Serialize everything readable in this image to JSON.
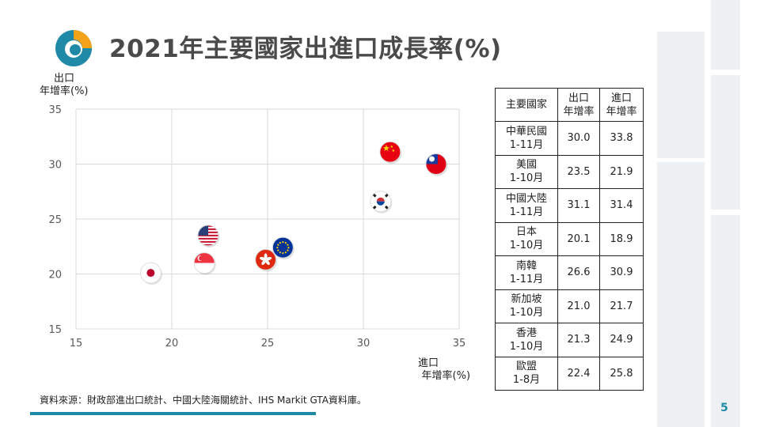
{
  "slide": {
    "title": "2021年主要國家出進口成長率(%)",
    "page_number": "5",
    "source": "資料來源：財政部進出口統計、中國大陸海關統計、IHS Markit GTA資料庫。"
  },
  "chart_data": {
    "type": "scatter",
    "xlabel_line1": "進口",
    "xlabel_line2": "年增率(%)",
    "ylabel_line1": "出口",
    "ylabel_line2": "年增率(%)",
    "xlim": [
      15,
      35
    ],
    "ylim": [
      15,
      35
    ],
    "x_ticks": [
      "15",
      "20",
      "25",
      "30",
      "35"
    ],
    "y_ticks": [
      "15",
      "20",
      "25",
      "30",
      "35"
    ],
    "grid": true,
    "points": [
      {
        "flag": "taiwan-flag-icon",
        "x": 33.8,
        "y": 30.0
      },
      {
        "flag": "usa-flag-icon",
        "x": 21.9,
        "y": 23.5
      },
      {
        "flag": "china-flag-icon",
        "x": 31.4,
        "y": 31.1
      },
      {
        "flag": "japan-flag-icon",
        "x": 18.9,
        "y": 20.1
      },
      {
        "flag": "south-korea-flag-icon",
        "x": 30.9,
        "y": 26.6
      },
      {
        "flag": "singapore-flag-icon",
        "x": 21.7,
        "y": 21.0
      },
      {
        "flag": "hong-kong-flag-icon",
        "x": 24.9,
        "y": 21.3
      },
      {
        "flag": "eu-flag-icon",
        "x": 25.8,
        "y": 22.4
      }
    ]
  },
  "table": {
    "header": {
      "country": "主要國家",
      "export_line1": "出口",
      "export_line2": "年增率",
      "import_line1": "進口",
      "import_line2": "年增率"
    },
    "rows": [
      {
        "name": "中華民國",
        "period": "1-11月",
        "export": "30.0",
        "import": "33.8"
      },
      {
        "name": "美國",
        "period": "1-10月",
        "export": "23.5",
        "import": "21.9"
      },
      {
        "name": "中國大陸",
        "period": "1-11月",
        "export": "31.1",
        "import": "31.4"
      },
      {
        "name": "日本",
        "period": "1-10月",
        "export": "20.1",
        "import": "18.9"
      },
      {
        "name": "南韓",
        "period": "1-11月",
        "export": "26.6",
        "import": "30.9"
      },
      {
        "name": "新加坡",
        "period": "1-10月",
        "export": "21.0",
        "import": "21.7"
      },
      {
        "name": "香港",
        "period": "1-10月",
        "export": "21.3",
        "import": "24.9"
      },
      {
        "name": "歐盟",
        "period": "1-8月",
        "export": "22.4",
        "import": "25.8"
      }
    ]
  },
  "colors": {
    "accent": "#1f8aa8",
    "logo_blue": "#1f8aa8",
    "logo_orange": "#f5a31a",
    "grid": "#d9d9d9"
  }
}
